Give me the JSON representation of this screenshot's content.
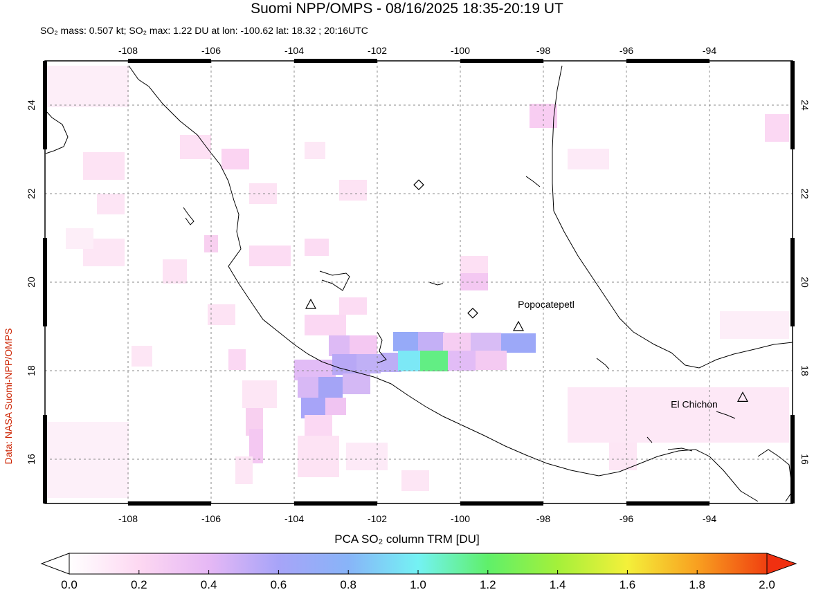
{
  "header": {
    "title": "Suomi NPP/OMPS - 08/16/2025 18:35-20:19 UT",
    "subtitle": "SO₂ mass: 0.507 kt; SO₂ max: 1.22 DU at lon: -100.62 lat: 18.32 ; 20:16UTC"
  },
  "credit": "Data: NASA Suomi-NPP/OMPS",
  "map": {
    "lon_range": [
      -110,
      -92
    ],
    "lat_range": [
      15,
      25
    ],
    "lon_ticks": [
      "-108",
      "-106",
      "-104",
      "-102",
      "-100",
      "-98",
      "-96",
      "-94"
    ],
    "lat_ticks": [
      "16",
      "18",
      "20",
      "22",
      "24"
    ],
    "volcano_labels": [
      {
        "name": "Popocatepetl",
        "lon": -98.6,
        "lat": 19.0
      },
      {
        "name": "El Chichon",
        "lon": -93.2,
        "lat": 17.4
      }
    ],
    "other_volcanoes": [
      {
        "symbol": "triangle",
        "lon": -103.6,
        "lat": 19.5
      },
      {
        "symbol": "diamond",
        "lon": -101.0,
        "lat": 22.2
      },
      {
        "symbol": "diamond",
        "lon": -99.7,
        "lat": 19.3
      }
    ]
  },
  "colorbar": {
    "title": "PCA SO₂ column TRM [DU]",
    "labels": [
      "0.0",
      "0.2",
      "0.4",
      "0.6",
      "0.8",
      "1.0",
      "1.2",
      "1.4",
      "1.6",
      "1.8",
      "2.0"
    ],
    "colors": [
      "#ffffff",
      "#fdd8f2",
      "#e6b8f5",
      "#a7a4f8",
      "#88b4f8",
      "#74f2f4",
      "#5ff06a",
      "#a4f03a",
      "#f4f03a",
      "#f8a020",
      "#f04010"
    ]
  }
}
